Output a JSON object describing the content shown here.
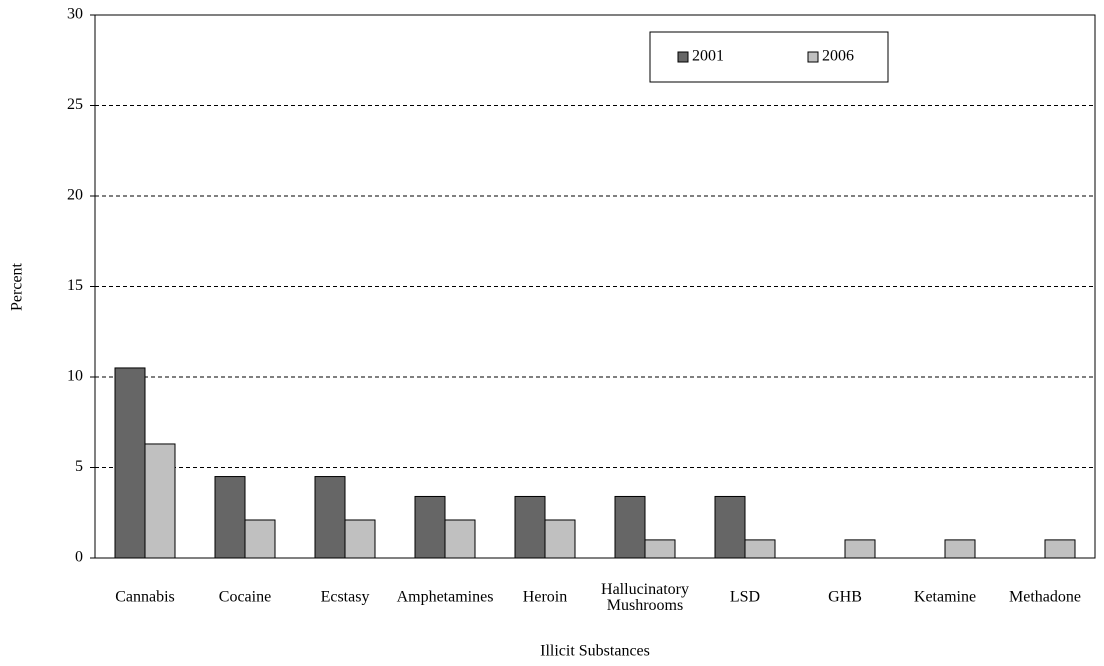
{
  "chart_data": {
    "type": "bar",
    "x_label": "Illicit Substances",
    "y_label": "Percent",
    "categories": [
      "Cannabis",
      "Cocaine",
      "Ecstasy",
      "Amphetamines",
      "Heroin",
      "Hallucinatory\nMushrooms",
      "LSD",
      "GHB",
      "Ketamine",
      "Methadone"
    ],
    "series": [
      {
        "name": "2001",
        "color": "#666666",
        "values": [
          10.5,
          4.5,
          4.5,
          3.4,
          3.4,
          3.4,
          3.4,
          0,
          0,
          0
        ]
      },
      {
        "name": "2006",
        "color": "#c0c0c0",
        "values": [
          6.3,
          2.1,
          2.1,
          2.1,
          2.1,
          1.0,
          1.0,
          1.0,
          1.0,
          1.0
        ]
      }
    ],
    "ylim": [
      0,
      30
    ],
    "yticks": [
      0,
      5,
      10,
      15,
      20,
      25,
      30
    ],
    "grid": true,
    "legend": "top"
  }
}
